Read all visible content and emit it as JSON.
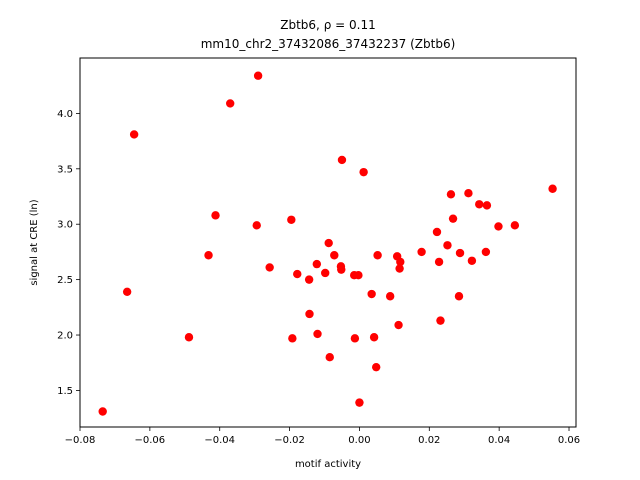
{
  "chart_data": {
    "type": "scatter",
    "title_line1": "Zbtb6, ρ = 0.11",
    "title_line2": "mm10_chr2_37432086_37432237 (Zbtb6)",
    "xlabel": "motif activity",
    "ylabel": "signal at CRE (ln)",
    "xlim": [
      -0.08,
      0.062
    ],
    "ylim": [
      1.17,
      4.5
    ],
    "xticks": [
      -0.08,
      -0.06,
      -0.04,
      -0.02,
      0.0,
      0.02,
      0.04,
      0.06
    ],
    "xtick_labels": [
      "−0.08",
      "−0.06",
      "−0.04",
      "−0.02",
      "0.00",
      "0.02",
      "0.04",
      "0.06"
    ],
    "yticks": [
      1.5,
      2.0,
      2.5,
      3.0,
      3.5,
      4.0
    ],
    "ytick_labels": [
      "1.5",
      "2.0",
      "2.5",
      "3.0",
      "3.5",
      "4.0"
    ],
    "grid": false,
    "marker_color": "#ff0000",
    "points": [
      {
        "x": -0.0735,
        "y": 1.31
      },
      {
        "x": -0.0665,
        "y": 2.39
      },
      {
        "x": -0.0645,
        "y": 3.81
      },
      {
        "x": -0.0488,
        "y": 1.98
      },
      {
        "x": -0.0432,
        "y": 2.72
      },
      {
        "x": -0.0412,
        "y": 3.08
      },
      {
        "x": -0.037,
        "y": 4.09
      },
      {
        "x": -0.0294,
        "y": 2.99
      },
      {
        "x": -0.029,
        "y": 4.34
      },
      {
        "x": -0.0257,
        "y": 2.61
      },
      {
        "x": -0.0195,
        "y": 3.04
      },
      {
        "x": -0.0192,
        "y": 1.97
      },
      {
        "x": -0.0178,
        "y": 2.55
      },
      {
        "x": -0.0144,
        "y": 2.5
      },
      {
        "x": -0.0143,
        "y": 2.19
      },
      {
        "x": -0.0122,
        "y": 2.64
      },
      {
        "x": -0.012,
        "y": 2.01
      },
      {
        "x": -0.0098,
        "y": 2.56
      },
      {
        "x": -0.0088,
        "y": 2.83
      },
      {
        "x": -0.0085,
        "y": 1.8
      },
      {
        "x": -0.0072,
        "y": 2.72
      },
      {
        "x": -0.0053,
        "y": 2.62
      },
      {
        "x": -0.0052,
        "y": 2.59
      },
      {
        "x": -0.005,
        "y": 3.58
      },
      {
        "x": -0.0015,
        "y": 2.54
      },
      {
        "x": -0.0013,
        "y": 1.97
      },
      {
        "x": -0.0003,
        "y": 2.54
      },
      {
        "x": 0.0,
        "y": 1.39
      },
      {
        "x": 0.0012,
        "y": 3.47
      },
      {
        "x": 0.0035,
        "y": 2.37
      },
      {
        "x": 0.0042,
        "y": 1.98
      },
      {
        "x": 0.0048,
        "y": 1.71
      },
      {
        "x": 0.0052,
        "y": 2.72
      },
      {
        "x": 0.0088,
        "y": 2.35
      },
      {
        "x": 0.0108,
        "y": 2.71
      },
      {
        "x": 0.0112,
        "y": 2.09
      },
      {
        "x": 0.0115,
        "y": 2.6
      },
      {
        "x": 0.0117,
        "y": 2.66
      },
      {
        "x": 0.0178,
        "y": 2.75
      },
      {
        "x": 0.0222,
        "y": 2.93
      },
      {
        "x": 0.0228,
        "y": 2.66
      },
      {
        "x": 0.0232,
        "y": 2.13
      },
      {
        "x": 0.0252,
        "y": 2.81
      },
      {
        "x": 0.0262,
        "y": 3.27
      },
      {
        "x": 0.0268,
        "y": 3.05
      },
      {
        "x": 0.0285,
        "y": 2.35
      },
      {
        "x": 0.0288,
        "y": 2.74
      },
      {
        "x": 0.0312,
        "y": 3.28
      },
      {
        "x": 0.0322,
        "y": 2.67
      },
      {
        "x": 0.0343,
        "y": 3.18
      },
      {
        "x": 0.0362,
        "y": 2.75
      },
      {
        "x": 0.0365,
        "y": 3.17
      },
      {
        "x": 0.0398,
        "y": 2.98
      },
      {
        "x": 0.0445,
        "y": 2.99
      },
      {
        "x": 0.0553,
        "y": 3.32
      }
    ]
  }
}
